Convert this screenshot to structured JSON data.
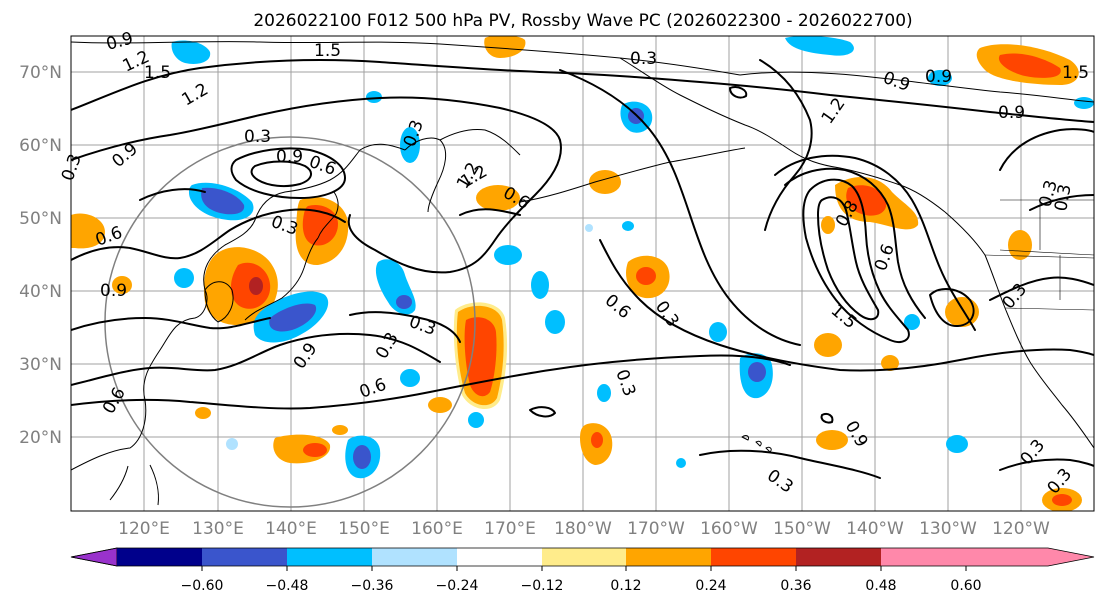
{
  "title": "2026022100 F012 500 hPa PV, Rossby Wave PC (2026022300 - 2026022700)",
  "lat_labels": [
    "70°N",
    "60°N",
    "50°N",
    "40°N",
    "30°N",
    "20°N"
  ],
  "lon_labels": [
    "120°E",
    "130°E",
    "140°E",
    "150°E",
    "160°E",
    "170°E",
    "180°W",
    "170°W",
    "160°W",
    "150°W",
    "140°W",
    "130°W",
    "120°W"
  ],
  "colorbar": {
    "ticks": [
      "−0.60",
      "−0.48",
      "−0.36",
      "−0.24",
      "−0.12",
      "0.12",
      "0.24",
      "0.36",
      "0.48",
      "0.60"
    ],
    "colors": [
      "#9932cc",
      "#00008b",
      "#3a55cc",
      "#00bfff",
      "#b0e2ff",
      "#ffffff",
      "#ffec8b",
      "#ffa500",
      "#ff4500",
      "#b22222",
      "#ff88aa"
    ]
  },
  "colors": {
    "neg_strong": "#3a55cc",
    "neg_mid": "#00bfff",
    "neg_weak": "#b0e2ff",
    "pos_weak": "#ffec8b",
    "pos_mid": "#ffa500",
    "pos_strong": "#ff4500"
  },
  "contour_labels": [
    "0.9",
    "1.5",
    "1.2",
    "1.5",
    "0.3",
    "1.2",
    "0.9",
    "0.9",
    "1.5",
    "1.2",
    "0.9",
    "0.3",
    "0.9",
    "0.6",
    "0.3",
    "0.9",
    "1.2",
    "0.6",
    "0.3",
    "0.6",
    "0.3",
    "0.9",
    "0.6",
    "0.3",
    "0.3",
    "0.6",
    "0.9",
    "0.8",
    "0.6",
    "1.5",
    "0.3",
    "0.3",
    "0.3",
    "0.3",
    "0.9",
    "0.6",
    "0.3",
    "0.3",
    "0.3",
    "0.3",
    "1.2"
  ]
}
